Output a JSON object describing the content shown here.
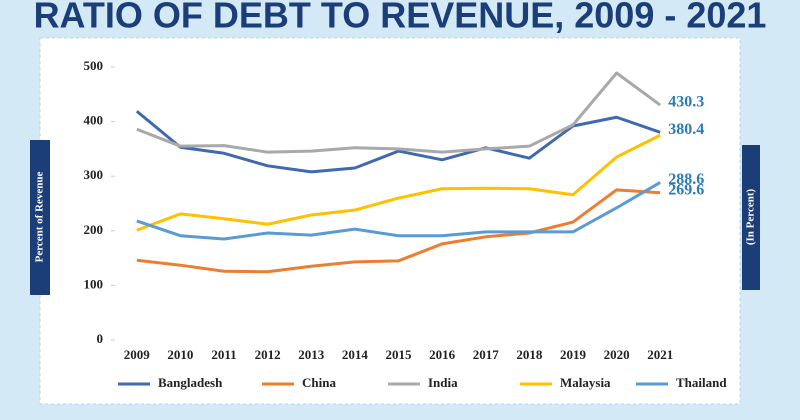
{
  "chart_data": {
    "type": "line",
    "title": "RATIO OF DEBT TO REVENUE, 2009 - 2021",
    "y_label": "Percent of Revenue",
    "y2_label": "(In Percent)",
    "categories": [
      "2009",
      "2010",
      "2011",
      "2012",
      "2013",
      "2014",
      "2015",
      "2016",
      "2017",
      "2018",
      "2019",
      "2020",
      "2021"
    ],
    "ylim": [
      0,
      500
    ],
    "yticks": [
      0,
      100,
      200,
      300,
      400,
      500
    ],
    "grid": false,
    "legend": "bottom",
    "series": [
      {
        "name": "Bangladesh",
        "color": "#4169b0",
        "end_label": true,
        "values": [
          419,
          353,
          342,
          319,
          308,
          315,
          346,
          330,
          352,
          333,
          392,
          408,
          380.4
        ]
      },
      {
        "name": "China",
        "color": "#ed7d31",
        "end_label": true,
        "values": [
          146,
          137,
          126,
          125,
          135,
          143,
          145,
          176,
          189,
          196,
          216,
          275,
          269.6
        ]
      },
      {
        "name": "India",
        "color": "#a9a9a9",
        "end_label": true,
        "values": [
          386,
          355,
          356,
          344,
          346,
          352,
          350,
          344,
          350,
          355,
          394,
          489,
          430.3
        ]
      },
      {
        "name": "Malaysia",
        "color": "#ffc000",
        "end_label": false,
        "values": [
          201,
          231,
          222,
          212,
          229,
          238,
          260,
          277,
          278,
          277,
          266,
          335,
          375
        ]
      },
      {
        "name": "Thailand",
        "color": "#5b9bd5",
        "end_label": true,
        "values": [
          218,
          191,
          185,
          196,
          192,
          203,
          191,
          191,
          198,
          198,
          198,
          242,
          288.6
        ]
      }
    ]
  }
}
